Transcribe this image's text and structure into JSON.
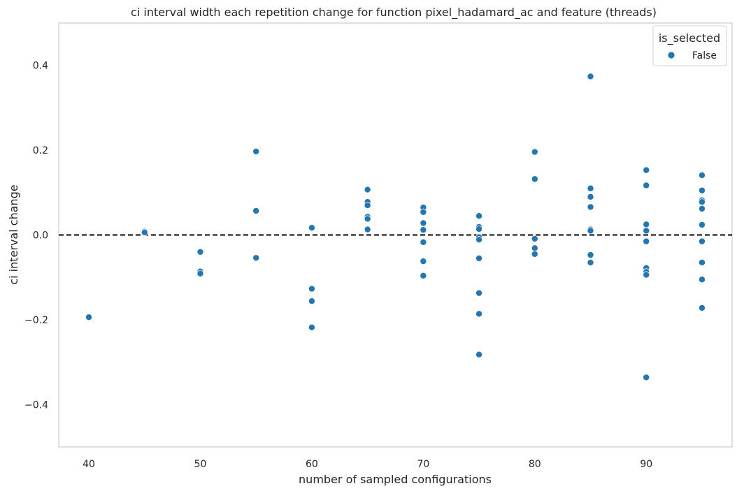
{
  "chart_data": {
    "type": "scatter",
    "title": "ci interval width each repetition change for function pixel_hadamard_ac and feature (threads)",
    "xlabel": "number of sampled configurations",
    "ylabel": "ci interval change",
    "xlim": [
      37.3,
      97.7
    ],
    "ylim": [
      -0.5,
      0.5
    ],
    "xticks": [
      40,
      50,
      60,
      70,
      80,
      90
    ],
    "yticks": [
      0.4,
      0.2,
      0.0,
      -0.2,
      -0.4
    ],
    "ytick_labels": [
      "0.4",
      "0.2",
      "0.0",
      "−0.2",
      "−0.4"
    ],
    "reference_line": {
      "y": 0.0,
      "style": "dashed",
      "color": "#000000"
    },
    "grid": false,
    "legend": {
      "title": "is_selected",
      "position": "top-right"
    },
    "series": [
      {
        "name": "False",
        "color": "#1f77b4",
        "points": [
          [
            40,
            -0.194
          ],
          [
            45,
            0.008
          ],
          [
            45,
            0.006
          ],
          [
            50,
            -0.04
          ],
          [
            50,
            -0.086
          ],
          [
            50,
            -0.091
          ],
          [
            55,
            0.197
          ],
          [
            55,
            0.057
          ],
          [
            55,
            -0.054
          ],
          [
            60,
            0.017
          ],
          [
            60,
            -0.127
          ],
          [
            60,
            -0.156
          ],
          [
            60,
            -0.218
          ],
          [
            65,
            0.107
          ],
          [
            65,
            0.078
          ],
          [
            65,
            0.07
          ],
          [
            65,
            0.043
          ],
          [
            65,
            0.038
          ],
          [
            65,
            0.013
          ],
          [
            70,
            0.065
          ],
          [
            70,
            0.054
          ],
          [
            70,
            0.028
          ],
          [
            70,
            0.012
          ],
          [
            70,
            -0.017
          ],
          [
            70,
            -0.062
          ],
          [
            70,
            -0.096
          ],
          [
            75,
            0.045
          ],
          [
            75,
            0.019
          ],
          [
            75,
            0.014
          ],
          [
            75,
            -0.005
          ],
          [
            75,
            -0.011
          ],
          [
            75,
            -0.055
          ],
          [
            75,
            -0.137
          ],
          [
            75,
            -0.186
          ],
          [
            75,
            -0.282
          ],
          [
            80,
            0.196
          ],
          [
            80,
            0.132
          ],
          [
            80,
            -0.009
          ],
          [
            80,
            -0.031
          ],
          [
            80,
            -0.045
          ],
          [
            85,
            0.374
          ],
          [
            85,
            0.11
          ],
          [
            85,
            0.09
          ],
          [
            85,
            0.066
          ],
          [
            85,
            0.013
          ],
          [
            85,
            0.01
          ],
          [
            85,
            -0.047
          ],
          [
            85,
            -0.065
          ],
          [
            90,
            0.153
          ],
          [
            90,
            0.117
          ],
          [
            90,
            0.025
          ],
          [
            90,
            0.01
          ],
          [
            90,
            -0.015
          ],
          [
            90,
            -0.078
          ],
          [
            90,
            -0.087
          ],
          [
            90,
            -0.094
          ],
          [
            90,
            -0.336
          ],
          [
            95,
            0.141
          ],
          [
            95,
            0.105
          ],
          [
            95,
            0.082
          ],
          [
            95,
            0.078
          ],
          [
            95,
            0.062
          ],
          [
            95,
            0.024
          ],
          [
            95,
            -0.015
          ],
          [
            95,
            -0.065
          ],
          [
            95,
            -0.105
          ],
          [
            95,
            -0.172
          ]
        ]
      }
    ]
  }
}
